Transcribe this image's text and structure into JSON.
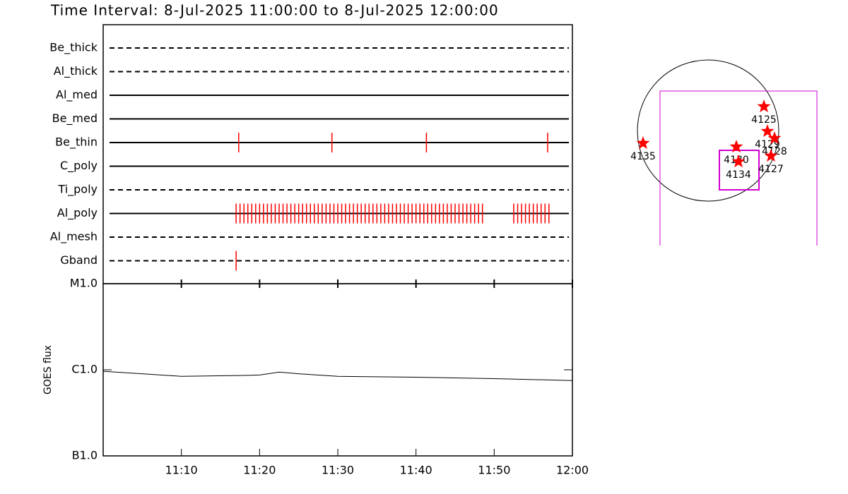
{
  "title": "Time Interval:  8-Jul-2025 11:00:00 to  8-Jul-2025 12:00:00",
  "chart_data": [
    {
      "type": "events",
      "xlim": [
        "11:00:00",
        "12:00:00"
      ],
      "categories": [
        "Be_thick",
        "Al_thick",
        "Al_med",
        "Be_med",
        "Be_thin",
        "C_poly",
        "Ti_poly",
        "Al_poly",
        "Al_mesh",
        "Gband"
      ],
      "line_styles": [
        "dashed",
        "dashed",
        "solid",
        "solid",
        "solid",
        "solid",
        "dashed",
        "solid",
        "dashed",
        "dashed"
      ],
      "color": "#ff0000",
      "events": [
        [],
        [],
        [],
        [],
        [
          "11:17:20",
          "11:29:15",
          "11:41:20",
          "11:56:50"
        ],
        [],
        [],
        [
          "11:17:00",
          "11:17:30",
          "11:18:00",
          "11:18:30",
          "11:19:00",
          "11:19:30",
          "11:20:00",
          "11:20:30",
          "11:21:00",
          "11:21:30",
          "11:22:00",
          "11:22:30",
          "11:23:00",
          "11:23:30",
          "11:24:00",
          "11:24:30",
          "11:25:00",
          "11:25:30",
          "11:26:00",
          "11:26:30",
          "11:27:00",
          "11:27:30",
          "11:28:00",
          "11:28:30",
          "11:29:00",
          "11:29:30",
          "11:30:00",
          "11:30:30",
          "11:31:00",
          "11:31:30",
          "11:32:00",
          "11:32:30",
          "11:33:00",
          "11:33:30",
          "11:34:00",
          "11:34:30",
          "11:35:00",
          "11:35:30",
          "11:36:00",
          "11:36:30",
          "11:37:00",
          "11:37:30",
          "11:38:00",
          "11:38:30",
          "11:39:00",
          "11:39:30",
          "11:40:00",
          "11:40:30",
          "11:41:00",
          "11:41:30",
          "11:42:00",
          "11:42:30",
          "11:43:00",
          "11:43:30",
          "11:44:00",
          "11:44:30",
          "11:45:00",
          "11:45:30",
          "11:46:00",
          "11:46:30",
          "11:47:00",
          "11:47:30",
          "11:48:00",
          "11:48:30",
          "11:52:30",
          "11:53:00",
          "11:53:30",
          "11:54:00",
          "11:54:30",
          "11:55:00",
          "11:55:30",
          "11:56:00",
          "11:56:30",
          "11:57:00"
        ],
        [],
        [
          "11:17:00"
        ]
      ]
    },
    {
      "type": "line",
      "ylabel": "GOES flux",
      "log_y": true,
      "xlim": [
        "11:00:00",
        "12:00:00"
      ],
      "xticks": [
        "11:10",
        "11:20",
        "11:30",
        "11:40",
        "11:50",
        "12:00"
      ],
      "ylim": [
        1e-07,
        1e-05
      ],
      "yticks": [
        {
          "value": 1e-07,
          "label": "B1.0"
        },
        {
          "value": 1e-06,
          "label": "C1.0"
        },
        {
          "value": 1e-05,
          "label": "M1.0"
        }
      ],
      "color": "#000000",
      "x": [
        "11:00:00",
        "11:10:00",
        "11:18:00",
        "11:20:00",
        "11:22:30",
        "11:25:00",
        "11:30:00",
        "11:40:00",
        "11:50:00",
        "12:00:00"
      ],
      "values": [
        9.6e-07,
        8.4e-07,
        8.6e-07,
        8.7e-07,
        9.4e-07,
        9e-07,
        8.4e-07,
        8.2e-07,
        7.9e-07,
        7.5e-07
      ]
    }
  ],
  "regions": [
    "4125",
    "4129",
    "4128",
    "4130",
    "4134",
    "4127",
    "4135"
  ]
}
